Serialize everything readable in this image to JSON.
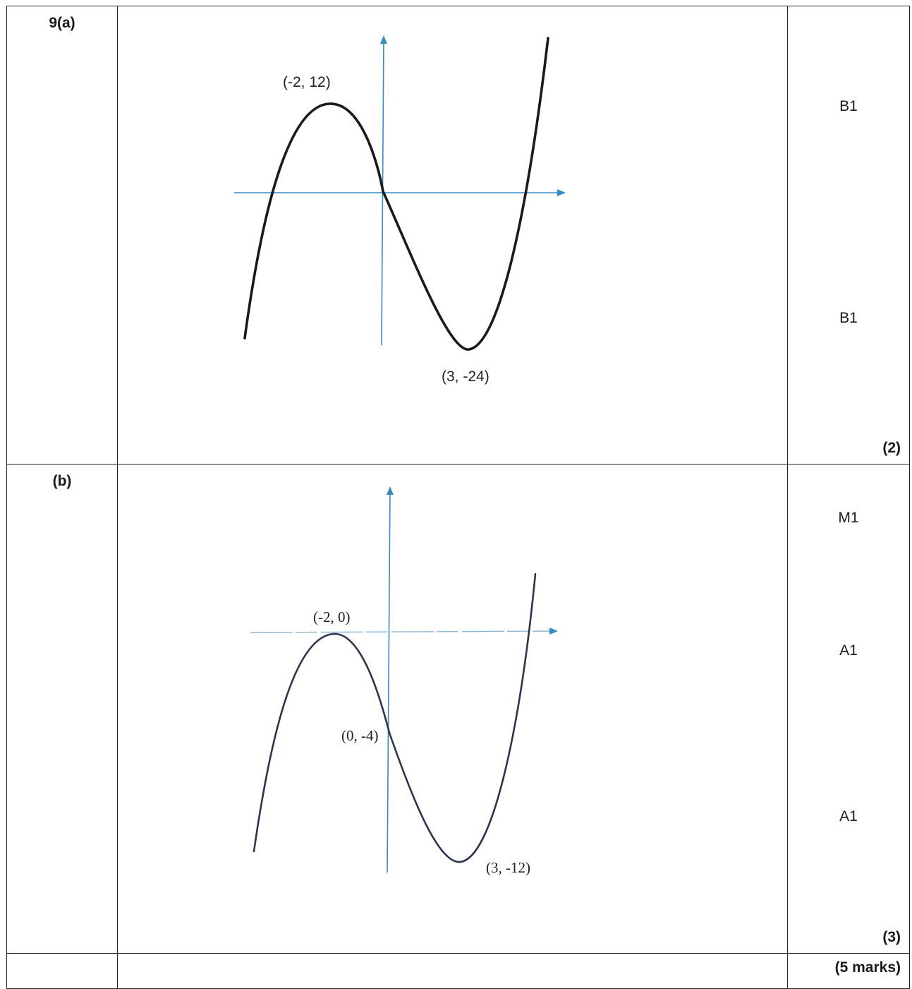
{
  "rows": [
    {
      "label": "9(a)",
      "graph": {
        "max_label": "(-2, 12)",
        "min_label": "(3, -24)"
      },
      "marks": [
        "B1",
        "B1"
      ],
      "subtotal": "(2)"
    },
    {
      "label": "(b)",
      "graph": {
        "max_label": "(-2, 0)",
        "intercept_label": "(0, -4)",
        "min_label": "(3, -12)"
      },
      "marks": [
        "M1",
        "A1",
        "A1"
      ],
      "subtotal": "(3)"
    }
  ],
  "total": "(5 marks)",
  "colors": {
    "axis": "#3a8bbf",
    "curve_a": "#1a1a1a",
    "curve_b": "#2b3550"
  }
}
